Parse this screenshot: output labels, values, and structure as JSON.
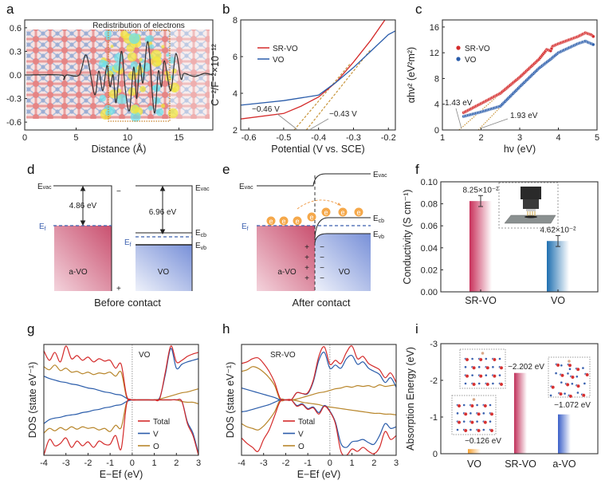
{
  "panel_labels": {
    "a": "a",
    "b": "b",
    "c": "c",
    "d": "d",
    "e": "e",
    "f": "f",
    "g": "g",
    "h": "h",
    "i": "i"
  },
  "colors": {
    "red": "#d42a2a",
    "blue": "#2a5caa",
    "gold": "#b8862b",
    "tangent": "#c8953a",
    "sr_bar": "#c8305a",
    "vo_bar": "#1f6fb0",
    "i_vo": "#f5a030",
    "i_sr": "#c0305a",
    "i_avo": "#3a5fc8"
  },
  "chart_data": [
    {
      "panel": "a",
      "type": "line",
      "xlabel": "Distance (Å)",
      "annotation": "Redistribution of electrons",
      "xlim": [
        0,
        18.3
      ],
      "ylim": [
        -0.7,
        0.7
      ],
      "xticks": [
        "0",
        "5",
        "10",
        "15"
      ],
      "yticks": [
        "0.6",
        "0.3",
        "0.0",
        "-0.3",
        "-0.6"
      ],
      "series": [
        {
          "color": "#333333",
          "points": [
            [
              0,
              0
            ],
            [
              3.5,
              0
            ],
            [
              3.8,
              -0.06
            ],
            [
              4.1,
              0
            ],
            [
              5.3,
              0
            ],
            [
              6,
              0.25
            ],
            [
              6.8,
              -0.25
            ],
            [
              7.2,
              0.05
            ],
            [
              7.6,
              -0.2
            ],
            [
              8,
              0.12
            ],
            [
              8.3,
              -0.15
            ],
            [
              8.6,
              0
            ],
            [
              8.9,
              -0.35
            ],
            [
              9.4,
              0.3
            ],
            [
              9.8,
              -0.2
            ],
            [
              10.2,
              -0.45
            ],
            [
              10.6,
              0.1
            ],
            [
              10.9,
              -0.3
            ],
            [
              11.2,
              0.15
            ],
            [
              11.5,
              -0.1
            ],
            [
              12.0,
              0.42
            ],
            [
              12.6,
              -0.48
            ],
            [
              13,
              0.05
            ],
            [
              13.3,
              -0.15
            ],
            [
              13.6,
              0.18
            ],
            [
              14.2,
              -0.2
            ],
            [
              14.7,
              0.27
            ],
            [
              15.2,
              -0.05
            ],
            [
              15.5,
              0.02
            ],
            [
              16.5,
              -0.02
            ],
            [
              17.5,
              0.02
            ],
            [
              18.3,
              0
            ]
          ]
        }
      ]
    },
    {
      "panel": "b",
      "type": "line",
      "xlabel": "Potential (V vs. SCE)",
      "ylabel": "C⁻²/F⁻²×10⁻¹²",
      "xlim": [
        -0.623,
        -0.18
      ],
      "ylim": [
        2,
        8
      ],
      "xticks": [
        "-0.6",
        "-0.5",
        "-0.4",
        "-0.3",
        "-0.2"
      ],
      "yticks": [
        "2",
        "4",
        "6",
        "8"
      ],
      "legend": "top-left",
      "series": [
        {
          "name": "SR-VO",
          "color": "#d42a2a",
          "points": [
            [
              -0.623,
              2.6
            ],
            [
              -0.5,
              2.9
            ],
            [
              -0.45,
              3.3
            ],
            [
              -0.4,
              3.8
            ],
            [
              -0.35,
              4.6
            ],
            [
              -0.3,
              5.7
            ],
            [
              -0.25,
              6.9
            ],
            [
              -0.21,
              8
            ]
          ]
        },
        {
          "name": "VO",
          "color": "#2a5caa",
          "points": [
            [
              -0.623,
              3.35
            ],
            [
              -0.5,
              3.6
            ],
            [
              -0.4,
              3.9
            ],
            [
              -0.35,
              4.6
            ],
            [
              -0.3,
              5.4
            ],
            [
              -0.25,
              6.3
            ],
            [
              -0.2,
              7.2
            ],
            [
              -0.18,
              7.4
            ]
          ]
        }
      ],
      "tangents": [
        [
          [
            -0.47,
            2
          ],
          [
            -0.31,
            5.6
          ]
        ],
        [
          [
            -0.435,
            2
          ],
          [
            -0.25,
            6.4
          ]
        ]
      ],
      "annotations": [
        {
          "text": "−0.46 V",
          "x": -0.46,
          "y": 2
        },
        {
          "text": "−0.43 V",
          "x": -0.43,
          "y": 2
        }
      ]
    },
    {
      "panel": "c",
      "type": "scatter",
      "xlabel": "hν (eV)",
      "ylabel": "αhν² (eV²m²)",
      "xlim": [
        1,
        5
      ],
      "ylim": [
        0,
        17.1
      ],
      "xticks": [
        "1",
        "2",
        "3",
        "4",
        "5"
      ],
      "yticks": [
        "0",
        "4",
        "8",
        "12",
        "16"
      ],
      "legend": "top-left",
      "series": [
        {
          "name": "SR-VO",
          "color": "#d42a2a",
          "points": [
            [
              1.55,
              2.7
            ],
            [
              2,
              4.1
            ],
            [
              2.5,
              5.7
            ],
            [
              3,
              8.2
            ],
            [
              3.5,
              11
            ],
            [
              3.7,
              12.5
            ],
            [
              3.8,
              12.3
            ],
            [
              3.85,
              13
            ],
            [
              4,
              13.4
            ],
            [
              4.5,
              14.5
            ],
            [
              4.7,
              15.1
            ],
            [
              4.85,
              14.8
            ],
            [
              4.93,
              14.4
            ]
          ]
        },
        {
          "name": "VO",
          "color": "#2a5caa",
          "points": [
            [
              1.55,
              2.1
            ],
            [
              2,
              2.8
            ],
            [
              2.5,
              3.7
            ],
            [
              3,
              6.7
            ],
            [
              3.5,
              9.6
            ],
            [
              3.8,
              11
            ],
            [
              4,
              12
            ],
            [
              4.5,
              13.4
            ],
            [
              4.7,
              13.8
            ],
            [
              4.93,
              13.2
            ]
          ]
        }
      ],
      "tangents": [
        [
          [
            1.43,
            0
          ],
          [
            3,
            8.3
          ]
        ],
        [
          [
            1.93,
            0
          ],
          [
            3.5,
            9.8
          ]
        ]
      ],
      "annotations": [
        {
          "text": "1.43 eV",
          "x": 1.43,
          "y": 0
        },
        {
          "text": "1.93 eV",
          "x": 1.93,
          "y": 0
        }
      ]
    },
    {
      "panel": "f",
      "type": "bar",
      "ylabel": "Conductivity (S cm⁻¹)",
      "ylim": [
        0,
        0.1
      ],
      "yticks": [
        "0.00",
        "0.02",
        "0.04",
        "0.06",
        "0.08",
        "0.10"
      ],
      "categories": [
        "SR-VO",
        "VO"
      ],
      "values": [
        0.0825,
        0.0462
      ],
      "errors": [
        0.005,
        0.005
      ],
      "value_labels": [
        "8.25×10⁻²",
        "4.62×10⁻²"
      ]
    },
    {
      "panel": "g",
      "type": "line",
      "title": "VO",
      "xlabel": "E−Ef (eV)",
      "ylabel": "DOS (state eV⁻¹)",
      "xlim": [
        -4,
        3
      ],
      "ylim": [
        -7,
        7
      ],
      "xticks": [
        "-4",
        "-3",
        "-2",
        "-1",
        "0",
        "1",
        "2",
        "3"
      ],
      "fermi_level": 0,
      "x": [
        -4,
        -3.75,
        -3.5,
        -3.25,
        -3,
        -2.75,
        -2.5,
        -2.25,
        -2,
        -1.75,
        -1.5,
        -1.25,
        -1,
        -0.75,
        -0.5,
        -0.25,
        0,
        0.25,
        0.5,
        0.75,
        1,
        1.25,
        1.5,
        1.75,
        2,
        2.25,
        2.5,
        2.75,
        3
      ],
      "series": [
        {
          "name": "Total",
          "color": "#d42a2a",
          "up": [
            6.2,
            5.0,
            6.0,
            4.8,
            6.8,
            5.2,
            5.6,
            5.0,
            5.4,
            4.8,
            5.2,
            4.9,
            5.0,
            4.0,
            4.5,
            0.5,
            0,
            0,
            0,
            0,
            0,
            0.2,
            3.5,
            6.8,
            4.8,
            5.0,
            5.5,
            5.8,
            6.0
          ],
          "down": [
            -7,
            -5,
            -5.8,
            -5.5,
            -4.8,
            -6,
            -5.2,
            -5.8,
            -5.3,
            -6,
            -5.2,
            -5.6,
            -5.6,
            -4.5,
            -6.2,
            -0.5,
            0,
            0,
            0,
            0,
            0,
            0,
            0,
            0,
            0,
            -0.2,
            -3,
            -4.5,
            -7
          ]
        },
        {
          "name": "V",
          "color": "#2a5caa",
          "up": [
            3.0,
            2.7,
            2.5,
            2.3,
            2.2,
            2.0,
            1.9,
            1.7,
            1.5,
            1.4,
            1.2,
            1.0,
            0.9,
            0.7,
            0.6,
            0.2,
            0,
            0,
            0,
            0,
            0,
            0.3,
            3.2,
            6.5,
            4.0,
            4.5,
            4.8,
            5.0,
            5.2
          ],
          "down": [
            -3.0,
            -2.5,
            -2.3,
            -2.2,
            -2.0,
            -1.9,
            -1.8,
            -1.6,
            -1.5,
            -1.3,
            -1.2,
            -1.0,
            -0.9,
            -0.7,
            -0.6,
            -0.2,
            0,
            0,
            0,
            0,
            0,
            0,
            0,
            0,
            0,
            -0.2,
            -2.8,
            -4.2,
            -6.8
          ]
        },
        {
          "name": "O",
          "color": "#b8862b",
          "up": [
            4.2,
            3.8,
            4.4,
            3.7,
            4.0,
            3.5,
            3.6,
            3.3,
            3.5,
            3.2,
            3.4,
            3.3,
            3.5,
            3.0,
            3.5,
            0.3,
            0,
            0,
            0,
            0,
            0,
            0.1,
            0.3,
            0.5,
            0.7,
            0.9,
            1.0,
            1.2,
            1.4
          ],
          "down": [
            -4.2,
            -3.6,
            -3.9,
            -3.5,
            -3.8,
            -3.4,
            -3.7,
            -3.4,
            -3.6,
            -3.5,
            -3.8,
            -3.6,
            -4.0,
            -3.2,
            -3.5,
            -0.3,
            0,
            0,
            0,
            0,
            0,
            0,
            0,
            0,
            0,
            -0.2,
            -0.3,
            -0.3,
            -0.5
          ]
        }
      ]
    },
    {
      "panel": "h",
      "type": "line",
      "title": "SR-VO",
      "xlabel": "E−Ef (eV)",
      "ylabel": "DOS (state eV⁻¹)",
      "xlim": [
        -4,
        3
      ],
      "ylim": [
        -7,
        7
      ],
      "xticks": [
        "-4",
        "-3",
        "-2",
        "-1",
        "0",
        "1",
        "2",
        "3"
      ],
      "fermi_level": 0,
      "x": [
        -4,
        -3.75,
        -3.5,
        -3.25,
        -3,
        -2.75,
        -2.5,
        -2.25,
        -2,
        -1.75,
        -1.5,
        -1.25,
        -1,
        -0.75,
        -0.5,
        -0.25,
        0,
        0.25,
        0.5,
        0.75,
        1,
        1.25,
        1.5,
        1.75,
        2,
        2.25,
        2.5,
        2.75,
        3
      ],
      "series": [
        {
          "name": "Total",
          "color": "#d42a2a",
          "up": [
            4.6,
            4.8,
            5.2,
            5.3,
            4.6,
            3.6,
            2.2,
            0.2,
            0,
            0,
            0.9,
            0.8,
            0.9,
            2.5,
            5.5,
            6.7,
            4.5,
            5.0,
            4.6,
            6.0,
            6.8,
            5.2,
            5.5,
            4.6,
            4.2,
            3.8,
            2.8,
            3.4,
            2.2
          ],
          "down": [
            -4.8,
            -5.5,
            -6.0,
            -6.5,
            -5.0,
            -3.8,
            -2.0,
            -0.2,
            0,
            0,
            -0.8,
            -0.6,
            -1.2,
            -1.0,
            -1.8,
            -0.8,
            -1.5,
            -3.0,
            -6.5,
            -7.0,
            -6.2,
            -6.5,
            -6.0,
            -6.5,
            -6.8,
            -6.0,
            -4.0,
            -5.0,
            -4.5
          ]
        },
        {
          "name": "V",
          "color": "#2a5caa",
          "up": [
            1.5,
            1.3,
            1.1,
            0.9,
            0.7,
            0.5,
            0.3,
            0,
            0,
            0,
            0.9,
            0.8,
            0.8,
            2.3,
            5.0,
            6.0,
            4.0,
            4.4,
            4.0,
            5.2,
            5.6,
            4.5,
            4.8,
            4.0,
            3.6,
            3.2,
            2.2,
            2.8,
            1.6
          ],
          "down": [
            -1.5,
            -1.4,
            -1.2,
            -1.0,
            -0.8,
            -0.6,
            -0.3,
            0,
            0,
            0,
            -0.7,
            -0.5,
            -1.1,
            -0.9,
            -1.6,
            -0.7,
            -1.4,
            -2.8,
            -5.5,
            -6.0,
            -5.3,
            -5.2,
            -5.0,
            -5.4,
            -5.6,
            -4.5,
            -3.0,
            -3.6,
            -3.4
          ]
        },
        {
          "name": "O",
          "color": "#b8862b",
          "up": [
            3.6,
            3.8,
            4.2,
            4.0,
            3.5,
            2.8,
            1.8,
            0,
            0,
            0,
            0.1,
            0.3,
            0.5,
            0.7,
            0.9,
            1.0,
            1.2,
            1.4,
            1.5,
            1.7,
            1.6,
            1.8,
            1.7,
            1.8,
            1.6,
            1.9,
            1.7,
            1.8,
            1.9
          ],
          "down": [
            -3.0,
            -3.4,
            -3.6,
            -3.8,
            -3.3,
            -2.5,
            -1.5,
            0,
            0,
            0,
            -0.1,
            -0.3,
            -0.4,
            -0.5,
            -0.6,
            -0.8,
            -0.9,
            -1.0,
            -1.1,
            -1.2,
            -1.3,
            -1.4,
            -1.5,
            -1.6,
            -1.7,
            -1.7,
            -1.8,
            -1.8,
            -1.9
          ]
        }
      ]
    },
    {
      "panel": "i",
      "type": "bar",
      "ylabel": "Absorption Energy (eV)",
      "ylim": [
        0,
        -3
      ],
      "yticks": [
        "-3",
        "-2",
        "-1",
        "0"
      ],
      "categories": [
        "VO",
        "SR-VO",
        "a-VO"
      ],
      "values": [
        -0.126,
        -2.202,
        -1.072
      ],
      "value_labels": [
        "−0.126 eV",
        "−2.202 eV",
        "−1.072 eV"
      ]
    }
  ],
  "diagram": {
    "E": "E",
    "vac": "vac",
    "cb": "cb",
    "vb": "vb",
    "f": "f",
    "d": {
      "wf_avo": "4.86 eV",
      "wf_vo": "6.96 eV",
      "avo": "a-VO",
      "vo": "VO",
      "minus": "−",
      "plus": "+",
      "caption": "Before contact"
    },
    "e": {
      "avo": "a-VO",
      "vo": "VO",
      "electron": "e",
      "plus": "+",
      "minus": "−",
      "caption": "After contact"
    }
  }
}
